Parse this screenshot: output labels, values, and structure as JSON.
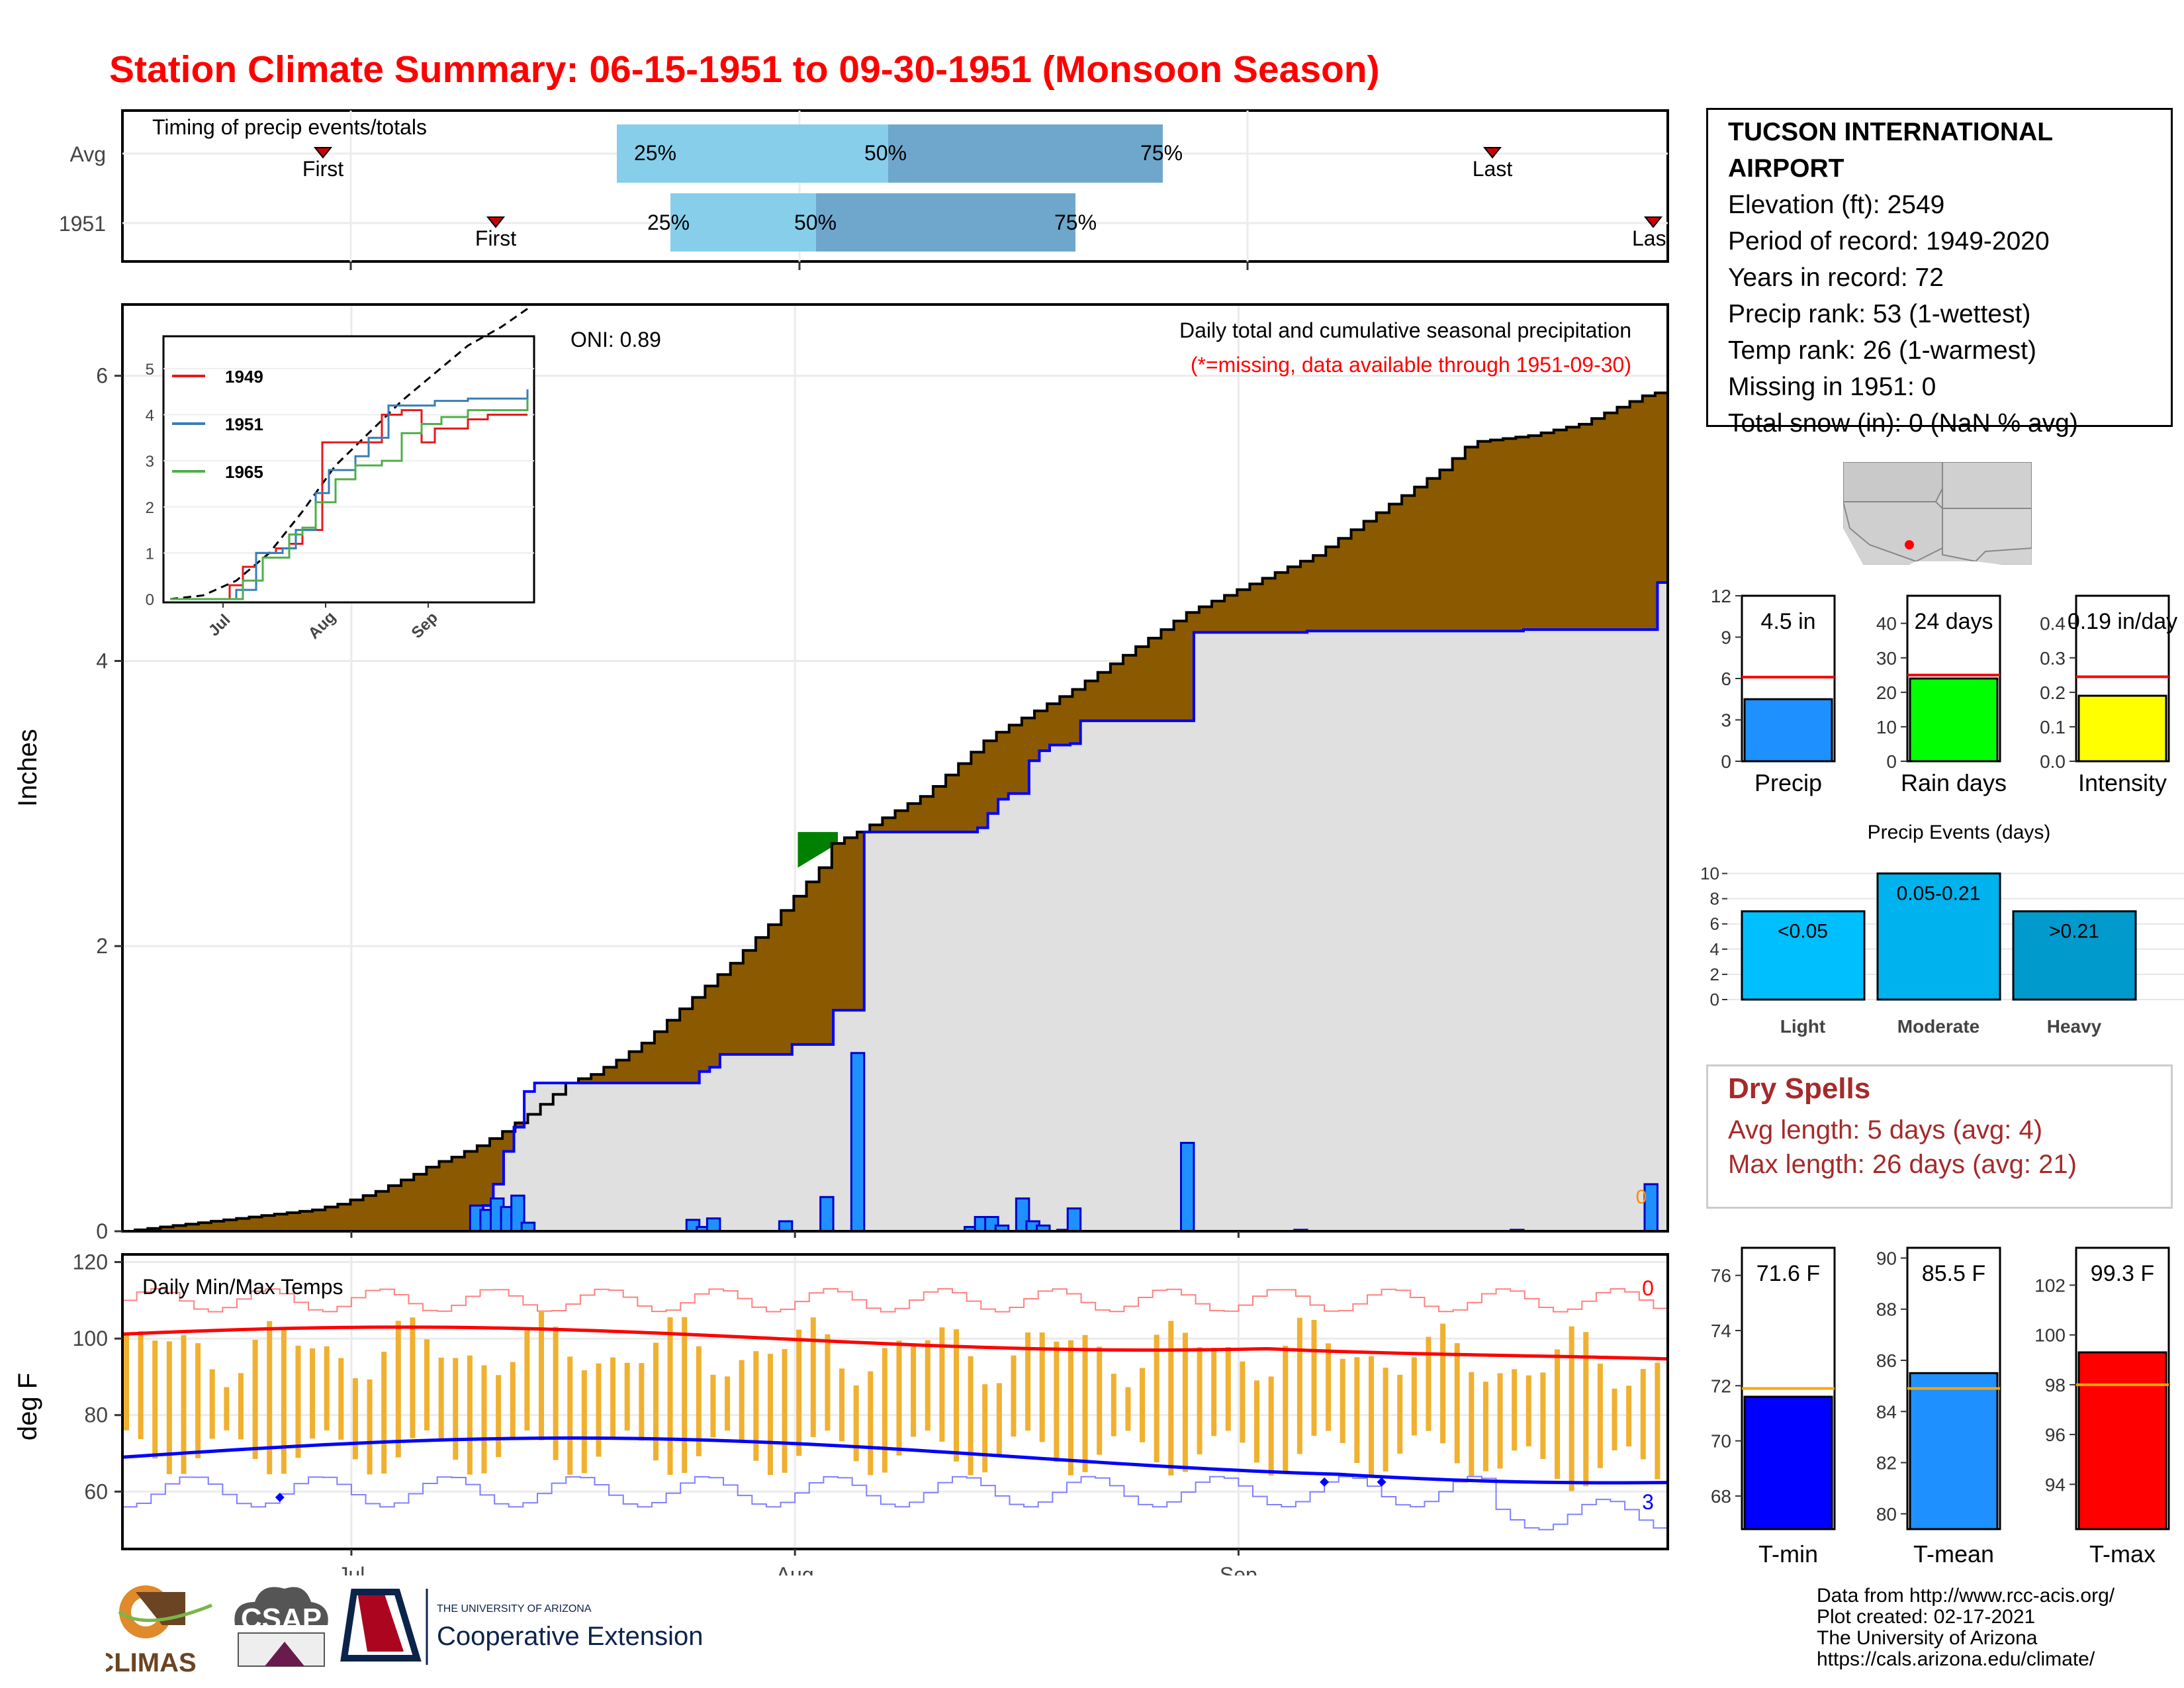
{
  "title": "Station Climate Summary: 06-15-1951 to 09-30-1951 (Monsoon Season)",
  "colors": {
    "title": "#ff0000",
    "cum_avg": "#8B5A00",
    "cum_year": "#e0e0e0",
    "line_year": "#0000ff",
    "above_avg": "#008000",
    "bar": "#1e90ff",
    "tmax": "#ff0000",
    "tmin": "#0000ff",
    "temp_bar": "#f0b030"
  },
  "timing": {
    "title": "Timing of precip events/totals",
    "rows": [
      {
        "label": "Avg",
        "first": "First",
        "p25": "25%",
        "p50": "50%",
        "p75": "75%",
        "last": "Last"
      },
      {
        "label": "1951",
        "first": "First",
        "p25": "25%",
        "p50": "50%",
        "p75": "75%",
        "last": "Las"
      }
    ]
  },
  "station": {
    "name": "TUCSON INTERNATIONAL AIRPORT",
    "lines": [
      "Elevation (ft): 2549",
      "Period of record: 1949-2020",
      "Years in record: 72",
      "Precip rank: 53 (1-wettest)",
      "Temp rank: 26 (1-warmest)",
      "Missing in 1951: 0",
      "Total snow (in): 0 (NaN % avg)"
    ]
  },
  "precip_main": {
    "ylabel": "Inches",
    "annotation_oni": "ONI: 0.89",
    "subtitle": "Daily total and cumulative seasonal precipitation",
    "note": "(*=missing, data available through 1951-09-30)",
    "x_ticks": [
      "Jul",
      "Aug",
      "Sep"
    ],
    "y_ticks": [
      "0",
      "2",
      "4",
      "6"
    ],
    "last_bar_label": "0"
  },
  "inset": {
    "legend": [
      "1949",
      "1951",
      "1965"
    ],
    "y_ticks": [
      "0",
      "1",
      "2",
      "3",
      "4",
      "5"
    ],
    "x_ticks": [
      "Jul",
      "Aug",
      "Sep"
    ]
  },
  "temps": {
    "title": "Daily Min/Max Temps",
    "ylabel": "deg F",
    "y_ticks": [
      "60",
      "80",
      "100",
      "120"
    ],
    "x_ticks": [
      "Jul",
      "Aug",
      "Sep"
    ],
    "count_max": "0",
    "count_min": "3"
  },
  "mini_bars": [
    {
      "label": "Precip",
      "value_text": "4.5 in",
      "value": 4.5,
      "avg": 6.1,
      "ylim": [
        0,
        12
      ],
      "ticks": [
        "0",
        "3",
        "6",
        "9",
        "12"
      ],
      "color": "#1e90ff"
    },
    {
      "label": "Rain days",
      "value_text": "24 days",
      "value": 24,
      "avg": 25,
      "ylim": [
        0,
        48
      ],
      "ticks": [
        "0",
        "10",
        "20",
        "30",
        "40"
      ],
      "color": "#00ff00"
    },
    {
      "label": "Intensity",
      "value_text": "0.19 in/day",
      "value": 0.19,
      "avg": 0.245,
      "ylim": [
        0,
        0.48
      ],
      "ticks": [
        "0.0",
        "0.1",
        "0.2",
        "0.3",
        "0.4"
      ],
      "color": "#ffff00"
    }
  ],
  "precip_events": {
    "title": "Precip Events (days)",
    "categories": [
      "Light",
      "Moderate",
      "Heavy"
    ],
    "bar_labels": [
      "<0.05",
      "0.05-0.21",
      ">0.21"
    ],
    "values": [
      7,
      10,
      7
    ],
    "ticks": [
      "0",
      "2",
      "4",
      "6",
      "8",
      "10"
    ]
  },
  "dry_spells": {
    "title": "Dry Spells",
    "avg_line": "Avg length: 5 days (avg: 4)",
    "max_line": "Max length: 26 days (avg: 21)"
  },
  "temp_bars": [
    {
      "label": "T-min",
      "value_text": "71.6 F",
      "value": 71.6,
      "avg": 71.9,
      "ylim": [
        66.8,
        77
      ],
      "ticks": [
        "68",
        "70",
        "72",
        "74",
        "76"
      ],
      "color": "#0000ff"
    },
    {
      "label": "T-mean",
      "value_text": "85.5 F",
      "value": 85.5,
      "avg": 84.9,
      "ylim": [
        79.4,
        90.4
      ],
      "ticks": [
        "80",
        "82",
        "84",
        "86",
        "88",
        "90"
      ],
      "color": "#1e90ff"
    },
    {
      "label": "T-max",
      "value_text": "99.3 F",
      "value": 99.3,
      "avg": 98,
      "ylim": [
        92.2,
        103.5
      ],
      "ticks": [
        "94",
        "96",
        "98",
        "100",
        "102"
      ],
      "color": "#ff0000"
    }
  ],
  "logos": {
    "climas": "CLIMAS",
    "csap": "CSAP",
    "ua_top": "THE UNIVERSITY OF ARIZONA",
    "ua_bottom": "Cooperative Extension"
  },
  "credits": [
    "Data from http://www.rcc-acis.org/",
    "Plot created: 02-17-2021",
    "The University of Arizona",
    "https://cals.arizona.edu/climate/"
  ],
  "chart_data": [
    {
      "type": "area",
      "title": "Daily total and cumulative seasonal precipitation",
      "ylabel": "Inches",
      "ylim": [
        0,
        6.5
      ],
      "x_start": "06-15",
      "x_end": "09-30",
      "series": [
        {
          "name": "",
          "values": [
            0,
            0.01,
            0.02,
            0.03,
            0.04,
            0.05,
            0.06,
            0.07,
            0.08,
            0.09,
            0.1,
            0.11,
            0.12,
            0.13,
            0.14,
            0.15,
            0.17,
            0.19,
            0.22,
            0.25,
            0.28,
            0.32,
            0.36,
            0.4,
            0.45,
            0.49,
            0.52,
            0.56,
            0.6,
            0.65,
            0.7,
            0.76,
            0.82,
            0.89,
            0.96,
            1.04,
            1.07,
            1.1,
            1.15,
            1.2,
            1.26,
            1.32,
            1.4,
            1.48,
            1.56,
            1.64,
            1.72,
            1.8,
            1.88,
            1.97,
            2.06,
            2.15,
            2.25,
            2.35,
            2.45,
            2.55,
            2.72,
            2.76,
            2.8,
            2.85,
            2.9,
            2.95,
            3,
            3.05,
            3.12,
            3.2,
            3.28,
            3.36,
            3.44,
            3.5,
            3.55,
            3.6,
            3.65,
            3.7,
            3.75,
            3.8,
            3.86,
            3.92,
            3.98,
            4.04,
            4.1,
            4.16,
            4.22,
            4.28,
            4.34,
            4.38,
            4.42,
            4.46,
            4.5,
            4.54,
            4.58,
            4.62,
            4.66,
            4.7,
            4.74,
            4.8,
            4.86,
            4.92,
            4.98,
            5.04,
            5.1,
            5.16,
            5.22,
            5.28,
            5.34,
            5.42,
            5.5,
            5.54,
            5.55,
            5.56,
            5.57,
            5.58,
            5.6,
            5.62,
            5.64,
            5.66,
            5.7,
            5.74,
            5.78,
            5.82,
            5.86,
            5.88,
            5.9
          ]
        },
        {
          "name": "",
          "values": [
            0,
            0,
            0,
            0,
            0,
            0,
            0,
            0,
            0,
            0,
            0,
            0,
            0,
            0,
            0,
            0,
            0,
            0,
            0,
            0,
            0,
            0,
            0,
            0,
            0,
            0,
            0,
            0,
            0,
            0,
            0,
            0,
            0,
            0,
            0,
            0.18,
            0.33,
            0.56,
            0.73,
            0.98,
            1.04,
            1.04,
            1.04,
            1.04,
            1.04,
            1.04,
            1.04,
            1.04,
            1.04,
            1.04,
            1.04,
            1.04,
            1.04,
            1.04,
            1.04,
            1.04,
            1.12,
            1.15,
            1.24,
            1.24,
            1.24,
            1.24,
            1.24,
            1.24,
            1.24,
            1.31,
            1.31,
            1.31,
            1.31,
            1.55,
            1.55,
            1.55,
            2.8,
            2.8,
            2.8,
            2.8,
            2.8,
            2.8,
            2.8,
            2.8,
            2.8,
            2.8,
            2.8,
            2.83,
            2.93,
            3.03,
            3.07,
            3.07,
            3.3,
            3.37,
            3.41,
            3.41,
            3.42,
            3.58,
            3.58,
            3.58,
            3.58,
            3.58,
            3.58,
            3.58,
            3.58,
            3.58,
            3.58,
            3.58,
            4.2,
            4.2,
            4.2,
            4.2,
            4.2,
            4.2,
            4.2,
            4.2,
            4.2,
            4.2,
            4.2,
            4.21,
            4.21,
            4.21,
            4.21,
            4.21,
            4.21,
            4.21,
            4.21,
            4.21,
            4.21,
            4.21,
            4.21,
            4.21,
            4.21,
            4.21,
            4.21,
            4.21,
            4.21,
            4.21,
            4.21,
            4.21,
            4.22,
            4.22,
            4.22,
            4.22,
            4.22,
            4.22,
            4.22,
            4.22,
            4.22,
            4.22,
            4.22,
            4.22,
            4.22,
            4.55,
            4.55
          ]
        }
      ]
    },
    {
      "type": "line",
      "title": "Daily Min/Max Temps",
      "ylabel": "deg F",
      "ylim": [
        45,
        122
      ]
    }
  ]
}
